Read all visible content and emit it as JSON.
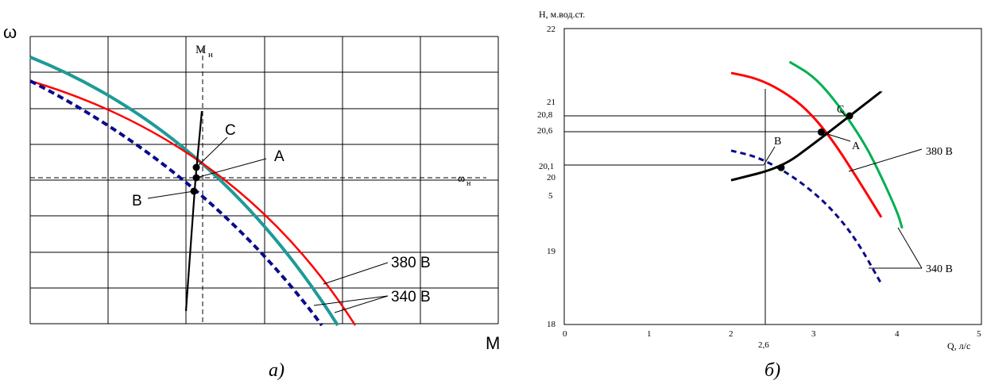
{
  "chart_data": [
    {
      "type": "line",
      "panel_caption": "а)",
      "xlabel": "M",
      "ylabel": "ω",
      "grid": true,
      "ref_lines": {
        "x_label_main": "M",
        "x_label_sub": "н",
        "y_label_main": "ω",
        "y_label_sub": "н"
      },
      "points": [
        {
          "name": "C"
        },
        {
          "name": "A"
        },
        {
          "name": "B"
        }
      ],
      "series_labels": [
        "380 В",
        "340 В"
      ],
      "series": [
        {
          "name": "380 В",
          "color": "#ff0000"
        },
        {
          "name": "340 В",
          "color": "#0a0a8c"
        },
        {
          "name": "340 В",
          "color": "#1e9a98"
        }
      ]
    },
    {
      "type": "line",
      "panel_caption": "б)",
      "ylabel": "Н, м.вод.ст.",
      "xlabel": "Q, л/с",
      "xlim": [
        0,
        5
      ],
      "ylim": [
        18,
        22
      ],
      "x_ticks": [
        "0",
        "1",
        "2",
        "2,6",
        "3",
        "4",
        "5"
      ],
      "y_ticks": [
        "18",
        "19",
        "20",
        "21",
        "22"
      ],
      "y_extra_ticks": [
        "5",
        "20,1",
        "20,6",
        "20,8"
      ],
      "grid": true,
      "series_labels": [
        "380 В",
        "340 В"
      ],
      "series": [
        {
          "name": "380 В",
          "color": "#ff0000",
          "x": [
            2.0,
            2.3,
            2.6,
            2.9,
            3.2,
            3.5,
            3.8
          ],
          "y": [
            21.4,
            21.33,
            21.17,
            20.92,
            20.52,
            20.0,
            19.45
          ]
        },
        {
          "name": "340 В",
          "color": "#0a0a8c",
          "x": [
            2.0,
            2.3,
            2.6,
            2.9,
            3.2,
            3.5,
            3.8
          ],
          "y": [
            20.35,
            20.27,
            20.1,
            19.87,
            19.57,
            19.15,
            18.55
          ]
        },
        {
          "color": "#00b050",
          "x": [
            2.7,
            3.0,
            3.3,
            3.6,
            3.8,
            4.0,
            4.05
          ],
          "y": [
            21.55,
            21.35,
            20.95,
            20.45,
            20.0,
            19.5,
            19.3
          ]
        },
        {
          "color": "#000000",
          "x": [
            2.0,
            2.6,
            3.0,
            3.4,
            3.8
          ],
          "y": [
            19.95,
            20.12,
            20.45,
            20.8,
            21.15
          ]
        }
      ],
      "points": [
        {
          "name": "В",
          "x": 2.6,
          "y": 20.12
        },
        {
          "name": "A",
          "x": 3.08,
          "y": 20.6
        },
        {
          "name": "C",
          "x": 3.42,
          "y": 20.82
        }
      ]
    }
  ]
}
